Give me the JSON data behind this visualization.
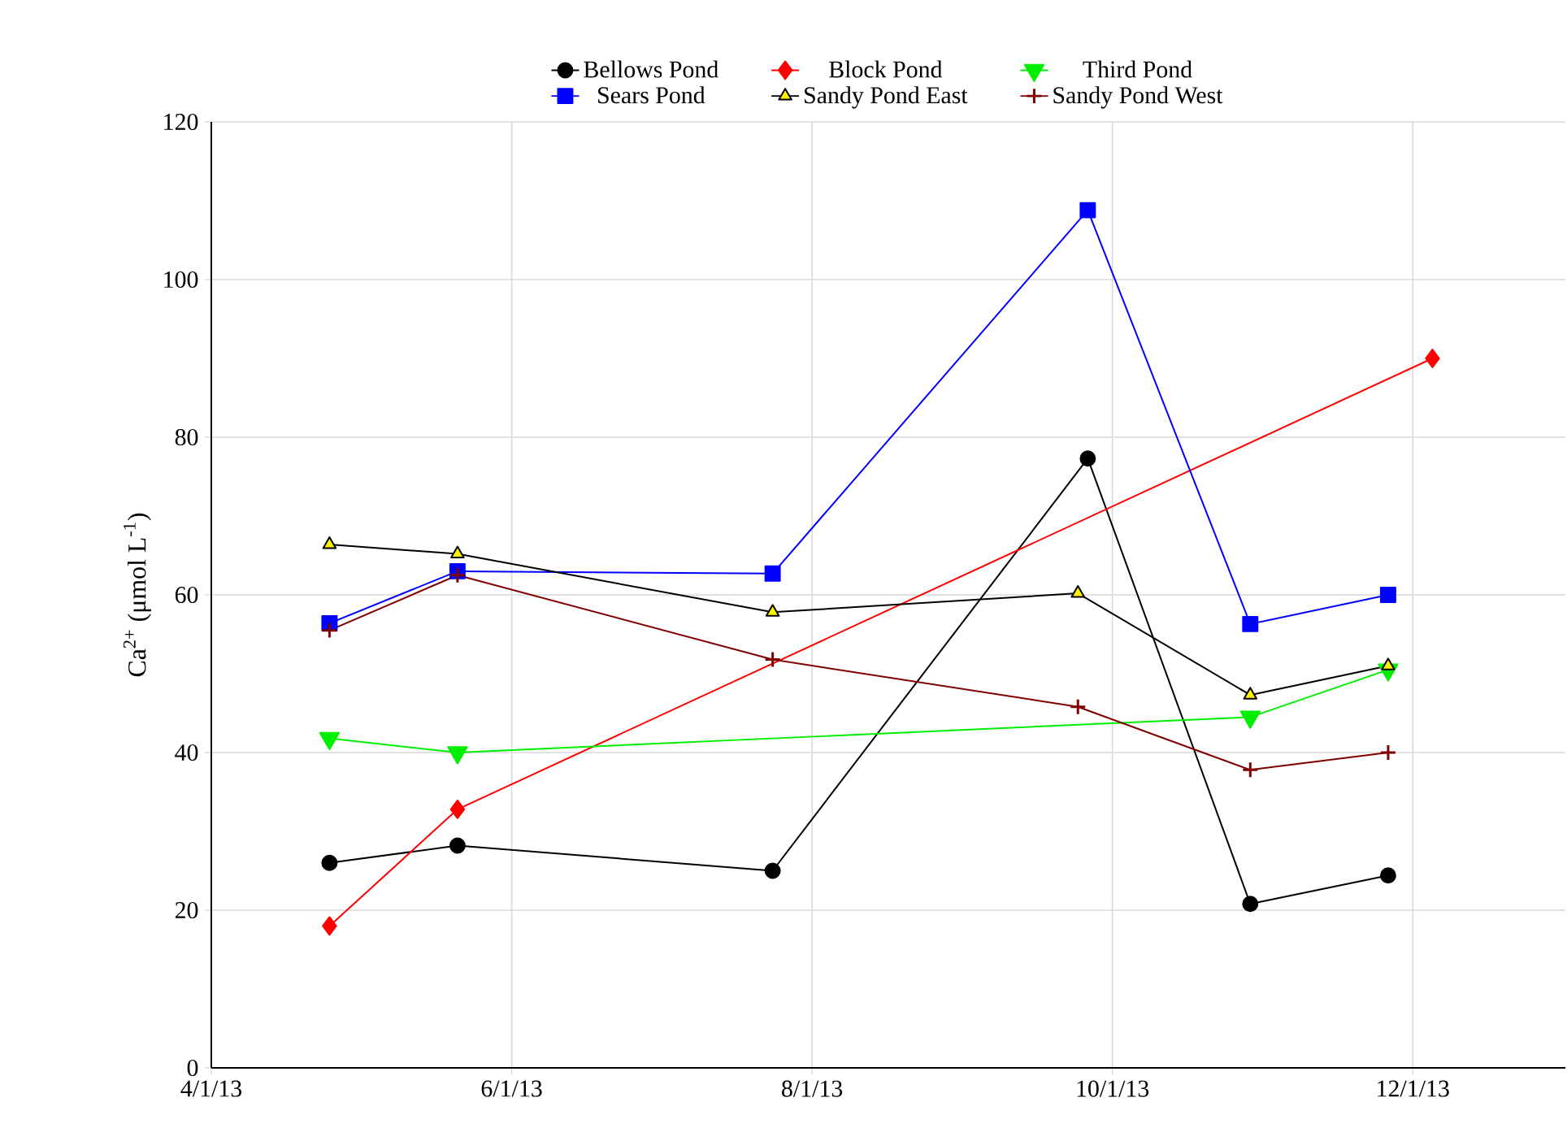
{
  "chart_data": {
    "type": "line",
    "ylabel": "Ca$^{2+}$ (μmol L$^{-1}$)",
    "xlim": [
      "2013-04-01",
      "2014-01-01"
    ],
    "ylim": [
      0,
      120
    ],
    "xticks": [
      {
        "value": "2013-04-01",
        "label": "4/1/13"
      },
      {
        "value": "2013-06-01",
        "label": "6/1/13"
      },
      {
        "value": "2013-08-01",
        "label": "8/1/13"
      },
      {
        "value": "2013-10-01",
        "label": "10/1/13"
      },
      {
        "value": "2013-12-01",
        "label": "12/1/13"
      }
    ],
    "yticks": [
      0,
      20,
      40,
      60,
      80,
      100,
      120
    ],
    "grid": true,
    "legend": "top",
    "line_style": "solid",
    "series": [
      {
        "name": "Bellows Pond",
        "color": "#000000",
        "marker": "circle",
        "x": [
          "2013-04-25",
          "2013-05-21",
          "2013-07-24",
          "2013-09-26",
          "2013-10-29",
          "2013-11-26"
        ],
        "values": [
          26,
          28.2,
          25,
          77.3,
          20.8,
          24.4
        ]
      },
      {
        "name": "Block Pond",
        "color": "#ff0000",
        "marker": "diamond",
        "x": [
          "2013-04-25",
          "2013-05-21",
          "2013-12-05"
        ],
        "values": [
          18,
          32.8,
          90
        ]
      },
      {
        "name": "Third Pond",
        "color": "#00ee00",
        "marker": "triangle-down",
        "x": [
          "2013-04-25",
          "2013-05-21",
          "2013-10-29",
          "2013-11-26"
        ],
        "values": [
          41.8,
          40,
          44.5,
          50.5
        ]
      },
      {
        "name": "Sears Pond",
        "color": "#0000ff",
        "marker": "square",
        "x": [
          "2013-04-25",
          "2013-05-21",
          "2013-07-24",
          "2013-09-26",
          "2013-10-29",
          "2013-11-26"
        ],
        "values": [
          56.4,
          63,
          62.7,
          108.8,
          56.3,
          60
        ]
      },
      {
        "name": "Sandy Pond East",
        "color": "#000000",
        "marker": "triangle",
        "x": [
          "2013-04-25",
          "2013-05-21",
          "2013-07-24",
          "2013-09-24",
          "2013-10-29",
          "2013-11-26"
        ],
        "values": [
          66.4,
          65.2,
          57.8,
          60.2,
          47.3,
          51
        ]
      },
      {
        "name": "Sandy Pond West",
        "color": "#800000",
        "marker": "cross",
        "x": [
          "2013-04-25",
          "2013-05-21",
          "2013-07-24",
          "2013-09-24",
          "2013-10-29",
          "2013-11-26"
        ],
        "values": [
          55.5,
          62.5,
          51.8,
          45.8,
          37.8,
          40
        ]
      }
    ]
  }
}
